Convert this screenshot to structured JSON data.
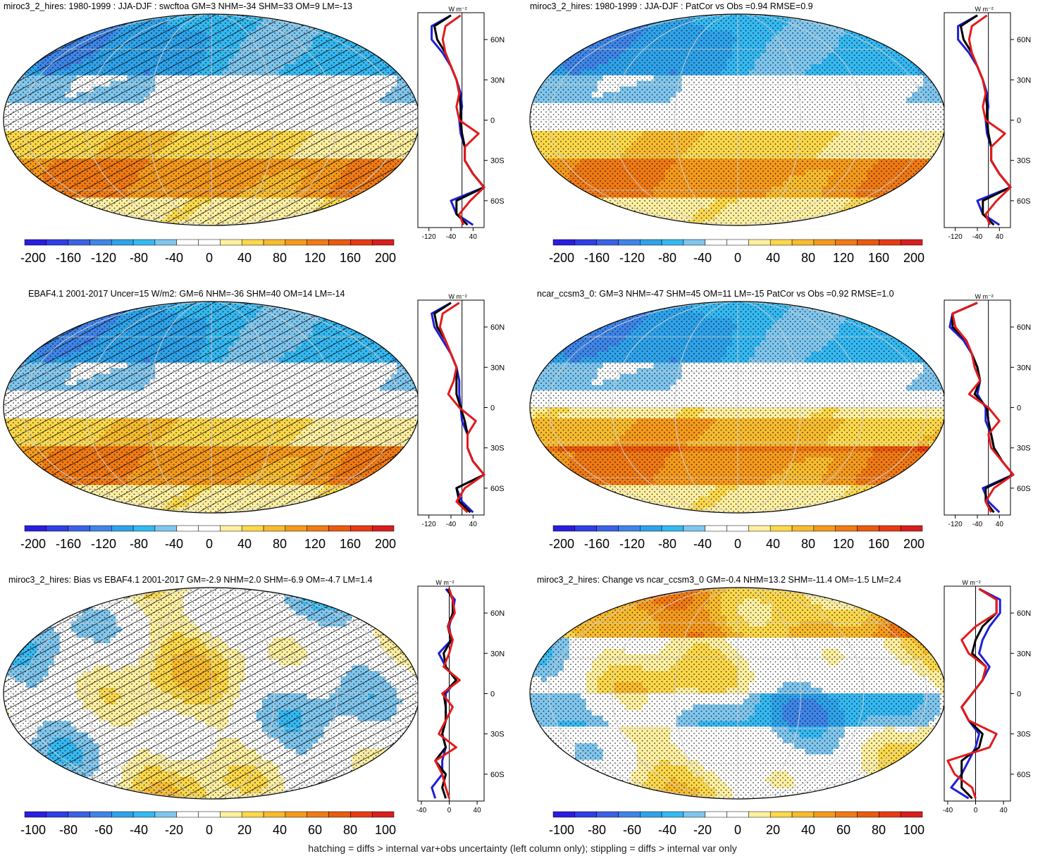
{
  "caption": "hatching = diffs > internal var+obs uncertainty (left column only); stippling = diffs > internal var only",
  "profile_units": "W m⁻²",
  "lat_ticks": [
    "60N",
    "30N",
    "0",
    "30S",
    "60S"
  ],
  "lat_values": [
    60,
    30,
    0,
    -30,
    -60
  ],
  "colorbar_wide": {
    "labels": [
      -200,
      -160,
      -120,
      -80,
      -40,
      0,
      40,
      80,
      120,
      160,
      200
    ],
    "range": [
      -220,
      220
    ]
  },
  "colorbar_narrow": {
    "labels": [
      -100,
      -80,
      -60,
      -40,
      -20,
      0,
      20,
      40,
      60,
      80,
      100
    ],
    "range": [
      -110,
      110
    ]
  },
  "colors": {
    "model_line": "#e41a1c",
    "obs_line": "#1f1fd6",
    "ref_line": "#000000",
    "cmap": [
      "#2a1de0",
      "#2f3fe6",
      "#3a62e6",
      "#3f85e8",
      "#2fa3ea",
      "#35b9f2",
      "#7fc6ee",
      "#ffffff",
      "#ffffff",
      "#fff0a0",
      "#fcd84a",
      "#f7bb2e",
      "#f59a1c",
      "#f07a14",
      "#ea5a0e",
      "#e83a14",
      "#d81e1e"
    ]
  },
  "chart_data": [
    {
      "type": "heatmap",
      "title": "miroc3_2_hires: 1980-1999 : JJA-DJF : swcftoa GM=3 NHM=-34 SHM=33 OM=9 LM=-13",
      "colorbar": "wide",
      "hatching": true,
      "zonal_profile": {
        "x_ticks": [
          -120,
          -40,
          40
        ],
        "xlim": [
          -160,
          80
        ],
        "lat": [
          78,
          70,
          60,
          50,
          40,
          30,
          20,
          10,
          0,
          -10,
          -20,
          -30,
          -40,
          -50,
          -60,
          -70,
          -78
        ],
        "model": [
          -5,
          -60,
          -70,
          -60,
          -40,
          -20,
          -10,
          -20,
          -10,
          60,
          10,
          10,
          40,
          80,
          30,
          -10,
          5
        ],
        "obs": [
          -40,
          -110,
          -110,
          -70,
          -40,
          -20,
          -5,
          0,
          -10,
          -5,
          10,
          10,
          40,
          80,
          -40,
          -20,
          40
        ],
        "ref": [
          -40,
          -100,
          -90,
          -60,
          -40,
          -20,
          -10,
          -5,
          -5,
          0,
          10,
          10,
          40,
          80,
          -20,
          -20,
          20
        ]
      }
    },
    {
      "type": "heatmap",
      "title": "miroc3_2_hires: 1980-1999 : JJA-DJF : PatCor vs Obs =0.94 RMSE=0.9",
      "colorbar": "wide",
      "hatching": false,
      "zonal_profile": {
        "x_ticks": [
          -120,
          -40,
          40
        ],
        "xlim": [
          -160,
          80
        ],
        "lat": [
          78,
          70,
          60,
          50,
          40,
          30,
          20,
          10,
          0,
          -10,
          -20,
          -30,
          -40,
          -50,
          -60,
          -70,
          -78
        ],
        "model": [
          -5,
          -60,
          -70,
          -60,
          -40,
          -20,
          -10,
          -20,
          -10,
          60,
          10,
          10,
          40,
          80,
          30,
          -10,
          5
        ],
        "obs": [
          -40,
          -110,
          -110,
          -70,
          -40,
          -20,
          -5,
          0,
          -10,
          -5,
          10,
          10,
          40,
          80,
          -40,
          -20,
          40
        ],
        "ref": [
          -40,
          -100,
          -90,
          -60,
          -40,
          -20,
          -10,
          -5,
          -5,
          0,
          10,
          10,
          40,
          80,
          -20,
          -20,
          20
        ]
      }
    },
    {
      "type": "heatmap",
      "title": "EBAF4.1 2001-2017 Uncer=15 W/m2: GM=6 NHM=-36 SHM=40 OM=14 LM=-14",
      "colorbar": "wide",
      "hatching": true,
      "zonal_profile": {
        "x_ticks": [
          -120,
          -40,
          40
        ],
        "xlim": [
          -160,
          80
        ],
        "lat": [
          78,
          70,
          60,
          50,
          40,
          30,
          20,
          10,
          0,
          -10,
          -20,
          -30,
          -40,
          -50,
          -60,
          -70,
          -78
        ],
        "model": [
          -10,
          -70,
          -80,
          -60,
          -40,
          -20,
          -30,
          -50,
          -10,
          50,
          20,
          20,
          40,
          80,
          10,
          -20,
          20
        ],
        "obs": [
          -40,
          -110,
          -100,
          -70,
          -40,
          -20,
          -10,
          -10,
          -5,
          0,
          20,
          20,
          40,
          80,
          -20,
          0,
          40
        ],
        "ref": [
          -40,
          -100,
          -90,
          -60,
          -40,
          -20,
          -20,
          -20,
          -5,
          10,
          20,
          20,
          40,
          80,
          -20,
          -10,
          30
        ]
      }
    },
    {
      "type": "heatmap",
      "title": "ncar_ccsm3_0: GM=3 NHM=-47 SHM=45 OM=11 LM=-15 PatCor vs Obs =0.92 RMSE=1.0",
      "colorbar": "wide",
      "hatching": false,
      "zonal_profile": {
        "x_ticks": [
          -120,
          -40,
          40
        ],
        "xlim": [
          -160,
          80
        ],
        "lat": [
          78,
          70,
          60,
          50,
          40,
          30,
          20,
          10,
          0,
          -10,
          -20,
          -30,
          -40,
          -50,
          -60,
          -70,
          -78
        ],
        "model": [
          -40,
          -130,
          -120,
          -80,
          -60,
          -50,
          -30,
          -70,
          0,
          40,
          0,
          10,
          50,
          90,
          20,
          -10,
          10
        ],
        "obs": [
          -40,
          -130,
          -140,
          -90,
          -60,
          -40,
          -30,
          -40,
          -10,
          -10,
          10,
          20,
          50,
          90,
          -20,
          0,
          40
        ],
        "ref": [
          -40,
          -130,
          -130,
          -80,
          -60,
          -40,
          -30,
          -50,
          -5,
          0,
          10,
          20,
          50,
          90,
          -10,
          -10,
          20
        ]
      }
    },
    {
      "type": "heatmap",
      "title": "miroc3_2_hires: Bias vs EBAF4.1 2001-2017 GM=-2.9 NHM=2.0 SHM=-6.9 OM=-4.7 LM=1.4",
      "colorbar": "narrow",
      "hatching": true,
      "zonal_profile": {
        "x_ticks": [
          -40,
          0,
          40
        ],
        "xlim": [
          -45,
          50
        ],
        "lat": [
          78,
          70,
          60,
          50,
          40,
          30,
          20,
          10,
          0,
          -10,
          -20,
          -30,
          -40,
          -50,
          -60,
          -70,
          -78
        ],
        "model": [
          0,
          5,
          8,
          -2,
          5,
          0,
          -8,
          15,
          -10,
          5,
          -5,
          -15,
          10,
          -20,
          -10,
          -5,
          0
        ],
        "obs": [
          -5,
          8,
          5,
          0,
          3,
          -15,
          -5,
          10,
          -5,
          -5,
          -5,
          -10,
          -5,
          -10,
          -10,
          -25,
          -20
        ],
        "ref": [
          -2,
          5,
          5,
          -2,
          3,
          -8,
          -5,
          10,
          -8,
          -5,
          -5,
          -10,
          -5,
          -20,
          -5,
          -10,
          -5
        ]
      }
    },
    {
      "type": "heatmap",
      "title": "miroc3_2_hires: Change vs ncar_ccsm3_0 GM=-0.4 NHM=13.2 SHM=-11.4 OM=-1.5 LM=2.4",
      "colorbar": "narrow",
      "hatching": false,
      "zonal_profile": {
        "x_ticks": [
          -40,
          0,
          40
        ],
        "xlim": [
          -45,
          50
        ],
        "lat": [
          78,
          70,
          60,
          50,
          40,
          30,
          20,
          10,
          0,
          -10,
          -20,
          -30,
          -40,
          -50,
          -60,
          -70,
          -78
        ],
        "model": [
          5,
          30,
          30,
          0,
          -20,
          -10,
          15,
          10,
          -5,
          -20,
          -10,
          30,
          20,
          -40,
          -30,
          -5,
          0
        ],
        "obs": [
          5,
          35,
          35,
          20,
          10,
          5,
          20,
          10,
          -5,
          -20,
          -10,
          5,
          0,
          -10,
          -20,
          -35,
          -10
        ],
        "ref": [
          5,
          30,
          30,
          10,
          0,
          -5,
          15,
          10,
          -5,
          -20,
          -10,
          10,
          5,
          -20,
          -20,
          -20,
          -5
        ]
      }
    }
  ]
}
